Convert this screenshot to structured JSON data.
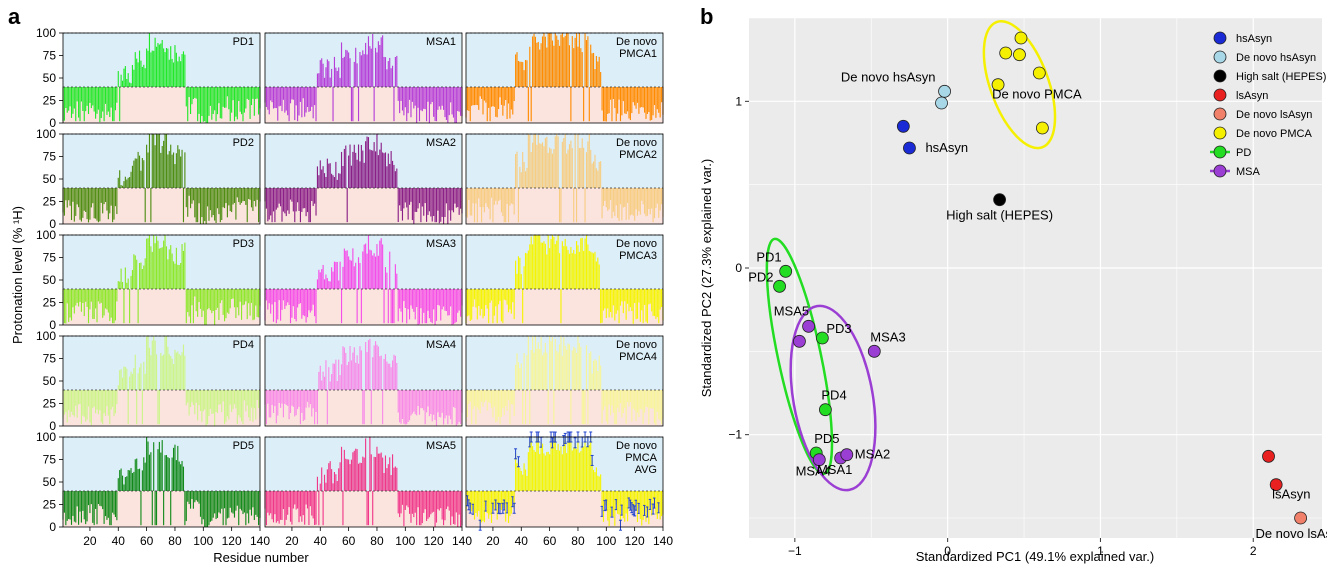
{
  "panel_a": {
    "letter": "a",
    "ylabel": "Protonation level (% ¹H)",
    "xlabel": "Residue number",
    "yticks": [
      "0",
      "25",
      "50",
      "75",
      "100"
    ],
    "xticks": [
      "20",
      "40",
      "60",
      "80",
      "100",
      "120",
      "140"
    ]
  },
  "panel_b": {
    "letter": "b",
    "xlabel": "Standardized PC1 (49.1% explained var.)",
    "ylabel": "Standardized PC2 (27.3% explained var.)",
    "xticks": [
      "−1",
      "0",
      "1",
      "2"
    ],
    "yticks": [
      "−1",
      "0",
      "1"
    ]
  },
  "chart_data": [
    {
      "type": "bar",
      "title": "",
      "xlabel": "Residue number",
      "ylabel": "Protonation level (% ¹H)",
      "xlim": [
        1,
        140
      ],
      "ylim": [
        0,
        100
      ],
      "dashed_reference_levels": [
        40,
        100
      ],
      "panels": [
        {
          "label": "PD1",
          "color": "#22e82a",
          "row": 0,
          "col": 0,
          "shape": "pd"
        },
        {
          "label": "MSA1",
          "color": "#b53ed8",
          "row": 0,
          "col": 1,
          "shape": "msa"
        },
        {
          "label": "De novo PMCA1",
          "color": "#ff8c00",
          "row": 0,
          "col": 2,
          "shape": "pmca"
        },
        {
          "label": "PD2",
          "color": "#4e8d12",
          "row": 1,
          "col": 0,
          "shape": "pd"
        },
        {
          "label": "MSA2",
          "color": "#8a1f87",
          "row": 1,
          "col": 1,
          "shape": "msa"
        },
        {
          "label": "De novo PMCA2",
          "color": "#f7cd82",
          "row": 1,
          "col": 2,
          "shape": "pmca"
        },
        {
          "label": "PD3",
          "color": "#8ee82a",
          "row": 2,
          "col": 0,
          "shape": "pd"
        },
        {
          "label": "MSA3",
          "color": "#f54ee8",
          "row": 2,
          "col": 1,
          "shape": "msa"
        },
        {
          "label": "De novo PMCA3",
          "color": "#f5f500",
          "row": 2,
          "col": 2,
          "shape": "pmca"
        },
        {
          "label": "PD4",
          "color": "#cdf58a",
          "row": 3,
          "col": 0,
          "shape": "pd"
        },
        {
          "label": "MSA4",
          "color": "#f88ae8",
          "row": 3,
          "col": 1,
          "shape": "msa"
        },
        {
          "label": "De novo PMCA4",
          "color": "#f7f59a",
          "row": 3,
          "col": 2,
          "shape": "pmca"
        },
        {
          "label": "PD5",
          "color": "#128a1a",
          "row": 4,
          "col": 0,
          "shape": "pd"
        },
        {
          "label": "MSA5",
          "color": "#f0388a",
          "row": 4,
          "col": 1,
          "shape": "msa"
        },
        {
          "label": "De novo PMCA AVG",
          "color": "#f5f500",
          "row": 4,
          "col": 2,
          "shape": "pmca",
          "error_bar_color": "#2244cc"
        }
      ],
      "profiles": {
        "pd": [
          {
            "from": 1,
            "to": 40,
            "level": 15
          },
          {
            "from": 40,
            "to": 50,
            "level": 55
          },
          {
            "from": 50,
            "to": 60,
            "level": 70
          },
          {
            "from": 60,
            "to": 75,
            "level": 92
          },
          {
            "from": 75,
            "to": 88,
            "level": 80
          },
          {
            "from": 88,
            "to": 98,
            "level": 20
          },
          {
            "from": 98,
            "to": 110,
            "level": 8
          },
          {
            "from": 110,
            "to": 140,
            "level": 18
          }
        ],
        "msa": [
          {
            "from": 1,
            "to": 38,
            "level": 16
          },
          {
            "from": 38,
            "to": 55,
            "level": 62
          },
          {
            "from": 55,
            "to": 72,
            "level": 78
          },
          {
            "from": 72,
            "to": 85,
            "level": 90
          },
          {
            "from": 85,
            "to": 95,
            "level": 70
          },
          {
            "from": 95,
            "to": 105,
            "level": 15
          },
          {
            "from": 105,
            "to": 140,
            "level": 12
          }
        ],
        "pmca": [
          {
            "from": 1,
            "to": 36,
            "level": 18
          },
          {
            "from": 36,
            "to": 45,
            "level": 70
          },
          {
            "from": 45,
            "to": 90,
            "level": 92
          },
          {
            "from": 90,
            "to": 97,
            "level": 70
          },
          {
            "from": 97,
            "to": 140,
            "level": 15
          }
        ]
      }
    },
    {
      "type": "scatter",
      "title": "",
      "xlabel": "Standardized PC1 (49.1% explained var.)",
      "ylabel": "Standardized PC2 (27.3% explained var.)",
      "xlim": [
        -1.3,
        2.45
      ],
      "ylim": [
        -1.62,
        1.5
      ],
      "grid": true,
      "legend_position": "top-right",
      "legend": [
        {
          "name": "hsAsyn",
          "color": "#1a2bd6",
          "type": "point"
        },
        {
          "name": "De novo hsAsyn",
          "color": "#a8d8e8",
          "type": "point"
        },
        {
          "name": "High salt (HEPES)",
          "color": "#000000",
          "type": "point"
        },
        {
          "name": "lsAsyn",
          "color": "#e82020",
          "type": "point"
        },
        {
          "name": "De novo lsAsyn",
          "color": "#f0806a",
          "type": "point"
        },
        {
          "name": "De novo PMCA",
          "color": "#f5f000",
          "type": "point"
        },
        {
          "name": "PD",
          "color": "#22dd22",
          "type": "ellipse"
        },
        {
          "name": "MSA",
          "color": "#9b3ed3",
          "type": "ellipse"
        }
      ],
      "series": [
        {
          "name": "hsAsyn",
          "color": "#1a2bd6",
          "points": [
            [
              -0.29,
              0.85
            ],
            [
              -0.25,
              0.72
            ]
          ]
        },
        {
          "name": "De novo hsAsyn",
          "color": "#a8d8e8",
          "points": [
            [
              -0.04,
              0.99
            ],
            [
              -0.02,
              1.06
            ]
          ]
        },
        {
          "name": "High salt (HEPES)",
          "color": "#000000",
          "points": [
            [
              0.34,
              0.41
            ]
          ]
        },
        {
          "name": "lsAsyn",
          "color": "#e82020",
          "points": [
            [
              2.1,
              -1.13
            ],
            [
              2.15,
              -1.3
            ]
          ]
        },
        {
          "name": "De novo lsAsyn",
          "color": "#f0806a",
          "points": [
            [
              2.31,
              -1.5
            ]
          ]
        },
        {
          "name": "De novo PMCA",
          "color": "#f5f000",
          "points": [
            [
              0.38,
              1.29
            ],
            [
              0.48,
              1.38
            ],
            [
              0.47,
              1.28
            ],
            [
              0.33,
              1.1
            ],
            [
              0.6,
              1.17
            ],
            [
              0.62,
              0.84
            ]
          ]
        },
        {
          "name": "PD",
          "color": "#22dd22",
          "points": [
            [
              -1.06,
              -0.02
            ],
            [
              -1.1,
              -0.11
            ],
            [
              -0.82,
              -0.42
            ],
            [
              -0.8,
              -0.85
            ],
            [
              -0.86,
              -1.11
            ]
          ]
        },
        {
          "name": "MSA",
          "color": "#9b3ed3",
          "points": [
            [
              -0.7,
              -1.14
            ],
            [
              -0.66,
              -1.12
            ],
            [
              -0.48,
              -0.5
            ],
            [
              -0.84,
              -1.15
            ],
            [
              -0.97,
              -0.44
            ],
            [
              -0.91,
              -0.35
            ]
          ]
        }
      ],
      "annotations": [
        {
          "text": "hsAsyn",
          "at": [
            -0.25,
            0.72
          ]
        },
        {
          "text": "De novo hsAsyn",
          "at": [
            -0.04,
            1.06
          ]
        },
        {
          "text": "High salt (HEPES)",
          "at": [
            0.34,
            0.41
          ]
        },
        {
          "text": "De novo PMCA",
          "at": [
            0.33,
            1.1
          ]
        },
        {
          "text": "lsAsyn",
          "at": [
            2.15,
            -1.3
          ]
        },
        {
          "text": "De novo lsAsyn",
          "at": [
            2.31,
            -1.5
          ]
        },
        {
          "text": "PD1",
          "at": [
            -1.06,
            -0.02
          ]
        },
        {
          "text": "PD2",
          "at": [
            -1.1,
            -0.11
          ]
        },
        {
          "text": "PD3",
          "at": [
            -0.82,
            -0.42
          ]
        },
        {
          "text": "PD4",
          "at": [
            -0.8,
            -0.85
          ]
        },
        {
          "text": "PD5",
          "at": [
            -0.86,
            -1.11
          ]
        },
        {
          "text": "MSA1",
          "at": [
            -0.7,
            -1.14
          ]
        },
        {
          "text": "MSA2",
          "at": [
            -0.66,
            -1.12
          ]
        },
        {
          "text": "MSA3",
          "at": [
            -0.48,
            -0.5
          ]
        },
        {
          "text": "MSA4",
          "at": [
            -0.84,
            -1.15
          ]
        },
        {
          "text": "MSA5",
          "at": [
            -0.97,
            -0.44
          ]
        }
      ],
      "ellipses": [
        {
          "group": "PD",
          "color": "#22dd22",
          "center": [
            -0.97,
            -0.53
          ],
          "semi_axes": [
            0.14,
            0.72
          ],
          "angle_deg": -12
        },
        {
          "group": "MSA",
          "color": "#9b3ed3",
          "center": [
            -0.75,
            -0.78
          ],
          "semi_axes": [
            0.26,
            0.56
          ],
          "angle_deg": -10
        },
        {
          "group": "De novo PMCA",
          "color": "#f5f000",
          "center": [
            0.47,
            1.1
          ],
          "semi_axes": [
            0.19,
            0.4
          ],
          "angle_deg": -20
        }
      ]
    }
  ]
}
